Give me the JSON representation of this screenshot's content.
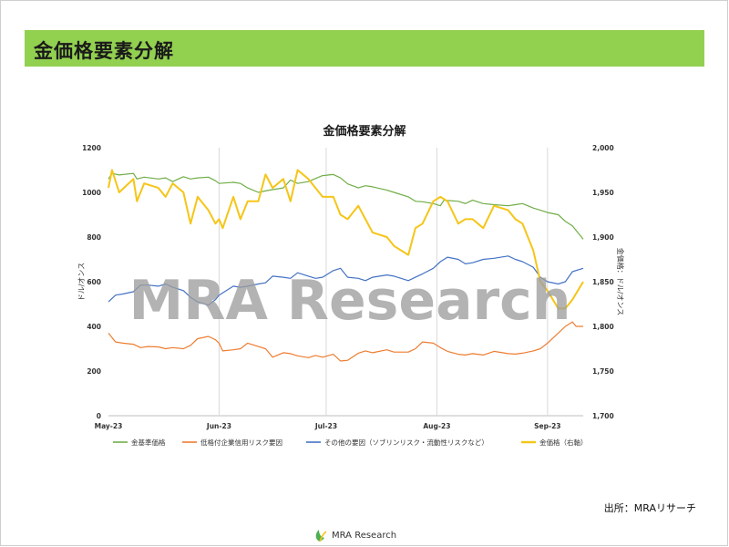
{
  "header": {
    "title": "金価格要素分解"
  },
  "source": "出所：MRAリサーチ",
  "footer": {
    "brand": "MRA Research"
  },
  "watermark": "MRA Research",
  "colors": {
    "header_bg": "#92d050",
    "s1": "#70ad47",
    "s2": "#ed7d31",
    "s3": "#4472c4",
    "s4": "#f5c518"
  },
  "chart_data": {
    "type": "line",
    "title": "金価格要素分解",
    "ylabel": "ドル/オンス",
    "y2label": "金価格：ドル/オンス",
    "ylim": [
      0,
      1200
    ],
    "yticks": [
      0,
      200,
      400,
      600,
      800,
      1000,
      1200
    ],
    "y2lim": [
      1700,
      2000
    ],
    "y2ticks": [
      "1,700",
      "1,750",
      "1,800",
      "1,850",
      "1,900",
      "1,950",
      "2,000"
    ],
    "y2tick_values": [
      1700,
      1750,
      1800,
      1850,
      1900,
      1950,
      2000
    ],
    "xlim": [
      "2023-05-01",
      "2023-09-11"
    ],
    "xticks": [
      {
        "label": "May-23",
        "date": "2023-05-01"
      },
      {
        "label": "Jun-23",
        "date": "2023-06-01"
      },
      {
        "label": "Jul-23",
        "date": "2023-07-01"
      },
      {
        "label": "Aug-23",
        "date": "2023-08-01"
      },
      {
        "label": "Sep-23",
        "date": "2023-09-01"
      }
    ],
    "legend_position": "bottom",
    "grid": false,
    "series": [
      {
        "name": "金基準価格",
        "axis": "left",
        "points": [
          [
            "2023-05-01",
            1060
          ],
          [
            "2023-05-02",
            1085
          ],
          [
            "2023-05-04",
            1078
          ],
          [
            "2023-05-08",
            1085
          ],
          [
            "2023-05-09",
            1060
          ],
          [
            "2023-05-11",
            1068
          ],
          [
            "2023-05-15",
            1060
          ],
          [
            "2023-05-17",
            1065
          ],
          [
            "2023-05-19",
            1048
          ],
          [
            "2023-05-22",
            1070
          ],
          [
            "2023-05-24",
            1060
          ],
          [
            "2023-05-26",
            1065
          ],
          [
            "2023-05-29",
            1068
          ],
          [
            "2023-05-31",
            1052
          ],
          [
            "2023-06-01",
            1040
          ],
          [
            "2023-06-05",
            1045
          ],
          [
            "2023-06-07",
            1040
          ],
          [
            "2023-06-09",
            1020
          ],
          [
            "2023-06-12",
            1000
          ],
          [
            "2023-06-15",
            1010
          ],
          [
            "2023-06-19",
            1020
          ],
          [
            "2023-06-21",
            1055
          ],
          [
            "2023-06-23",
            1040
          ],
          [
            "2023-06-26",
            1048
          ],
          [
            "2023-06-28",
            1062
          ],
          [
            "2023-06-30",
            1075
          ],
          [
            "2023-07-03",
            1080
          ],
          [
            "2023-07-05",
            1065
          ],
          [
            "2023-07-07",
            1038
          ],
          [
            "2023-07-10",
            1020
          ],
          [
            "2023-07-12",
            1030
          ],
          [
            "2023-07-14",
            1025
          ],
          [
            "2023-07-18",
            1010
          ],
          [
            "2023-07-20",
            1000
          ],
          [
            "2023-07-24",
            980
          ],
          [
            "2023-07-26",
            960
          ],
          [
            "2023-07-28",
            958
          ],
          [
            "2023-07-31",
            950
          ],
          [
            "2023-08-02",
            940
          ],
          [
            "2023-08-03",
            965
          ],
          [
            "2023-08-07",
            960
          ],
          [
            "2023-08-09",
            950
          ],
          [
            "2023-08-11",
            965
          ],
          [
            "2023-08-14",
            950
          ],
          [
            "2023-08-17",
            945
          ],
          [
            "2023-08-21",
            940
          ],
          [
            "2023-08-23",
            945
          ],
          [
            "2023-08-25",
            950
          ],
          [
            "2023-08-28",
            930
          ],
          [
            "2023-08-30",
            920
          ],
          [
            "2023-09-01",
            910
          ],
          [
            "2023-09-04",
            900
          ],
          [
            "2023-09-06",
            870
          ],
          [
            "2023-09-08",
            850
          ],
          [
            "2023-09-11",
            790
          ]
        ]
      },
      {
        "name": "低格付企業信用リスク要因",
        "axis": "left",
        "points": [
          [
            "2023-05-01",
            370
          ],
          [
            "2023-05-03",
            330
          ],
          [
            "2023-05-05",
            325
          ],
          [
            "2023-05-08",
            320
          ],
          [
            "2023-05-10",
            305
          ],
          [
            "2023-05-12",
            310
          ],
          [
            "2023-05-15",
            308
          ],
          [
            "2023-05-17",
            300
          ],
          [
            "2023-05-19",
            305
          ],
          [
            "2023-05-22",
            300
          ],
          [
            "2023-05-24",
            315
          ],
          [
            "2023-05-26",
            345
          ],
          [
            "2023-05-29",
            355
          ],
          [
            "2023-05-31",
            340
          ],
          [
            "2023-06-01",
            325
          ],
          [
            "2023-06-02",
            290
          ],
          [
            "2023-06-05",
            295
          ],
          [
            "2023-06-07",
            300
          ],
          [
            "2023-06-09",
            325
          ],
          [
            "2023-06-12",
            310
          ],
          [
            "2023-06-14",
            300
          ],
          [
            "2023-06-16",
            262
          ],
          [
            "2023-06-19",
            282
          ],
          [
            "2023-06-21",
            278
          ],
          [
            "2023-06-23",
            268
          ],
          [
            "2023-06-26",
            260
          ],
          [
            "2023-06-28",
            270
          ],
          [
            "2023-06-30",
            262
          ],
          [
            "2023-07-03",
            275
          ],
          [
            "2023-07-05",
            245
          ],
          [
            "2023-07-07",
            248
          ],
          [
            "2023-07-10",
            280
          ],
          [
            "2023-07-12",
            290
          ],
          [
            "2023-07-14",
            282
          ],
          [
            "2023-07-18",
            295
          ],
          [
            "2023-07-20",
            285
          ],
          [
            "2023-07-24",
            285
          ],
          [
            "2023-07-26",
            300
          ],
          [
            "2023-07-28",
            330
          ],
          [
            "2023-07-31",
            325
          ],
          [
            "2023-08-02",
            305
          ],
          [
            "2023-08-04",
            288
          ],
          [
            "2023-08-07",
            275
          ],
          [
            "2023-08-09",
            272
          ],
          [
            "2023-08-11",
            278
          ],
          [
            "2023-08-14",
            272
          ],
          [
            "2023-08-17",
            288
          ],
          [
            "2023-08-21",
            278
          ],
          [
            "2023-08-23",
            276
          ],
          [
            "2023-08-25",
            280
          ],
          [
            "2023-08-28",
            290
          ],
          [
            "2023-08-30",
            300
          ],
          [
            "2023-09-01",
            325
          ],
          [
            "2023-09-04",
            370
          ],
          [
            "2023-09-06",
            400
          ],
          [
            "2023-09-08",
            420
          ],
          [
            "2023-09-09",
            400
          ],
          [
            "2023-09-11",
            400
          ]
        ]
      },
      {
        "name": "その他の要因（ソブリンリスク・流動性リスクなど）",
        "axis": "left",
        "points": [
          [
            "2023-05-01",
            510
          ],
          [
            "2023-05-03",
            540
          ],
          [
            "2023-05-05",
            545
          ],
          [
            "2023-05-08",
            555
          ],
          [
            "2023-05-10",
            585
          ],
          [
            "2023-05-12",
            585
          ],
          [
            "2023-05-15",
            580
          ],
          [
            "2023-05-17",
            590
          ],
          [
            "2023-05-19",
            575
          ],
          [
            "2023-05-22",
            560
          ],
          [
            "2023-05-24",
            530
          ],
          [
            "2023-05-26",
            510
          ],
          [
            "2023-05-29",
            495
          ],
          [
            "2023-05-31",
            520
          ],
          [
            "2023-06-01",
            540
          ],
          [
            "2023-06-05",
            580
          ],
          [
            "2023-06-07",
            575
          ],
          [
            "2023-06-09",
            580
          ],
          [
            "2023-06-12",
            590
          ],
          [
            "2023-06-14",
            595
          ],
          [
            "2023-06-16",
            625
          ],
          [
            "2023-06-19",
            620
          ],
          [
            "2023-06-21",
            615
          ],
          [
            "2023-06-23",
            640
          ],
          [
            "2023-06-26",
            625
          ],
          [
            "2023-06-28",
            615
          ],
          [
            "2023-06-30",
            620
          ],
          [
            "2023-07-03",
            650
          ],
          [
            "2023-07-05",
            660
          ],
          [
            "2023-07-07",
            620
          ],
          [
            "2023-07-10",
            615
          ],
          [
            "2023-07-12",
            605
          ],
          [
            "2023-07-14",
            620
          ],
          [
            "2023-07-18",
            630
          ],
          [
            "2023-07-20",
            625
          ],
          [
            "2023-07-24",
            605
          ],
          [
            "2023-07-26",
            620
          ],
          [
            "2023-07-28",
            635
          ],
          [
            "2023-07-31",
            660
          ],
          [
            "2023-08-02",
            690
          ],
          [
            "2023-08-04",
            710
          ],
          [
            "2023-08-07",
            700
          ],
          [
            "2023-08-09",
            680
          ],
          [
            "2023-08-11",
            685
          ],
          [
            "2023-08-14",
            700
          ],
          [
            "2023-08-17",
            705
          ],
          [
            "2023-08-21",
            715
          ],
          [
            "2023-08-23",
            700
          ],
          [
            "2023-08-25",
            690
          ],
          [
            "2023-08-28",
            665
          ],
          [
            "2023-08-30",
            620
          ],
          [
            "2023-09-01",
            600
          ],
          [
            "2023-09-04",
            590
          ],
          [
            "2023-09-06",
            600
          ],
          [
            "2023-09-08",
            645
          ],
          [
            "2023-09-11",
            660
          ]
        ]
      },
      {
        "name": "金価格（右軸）",
        "axis": "right",
        "points": [
          [
            "2023-05-01",
            1955
          ],
          [
            "2023-05-02",
            1975
          ],
          [
            "2023-05-04",
            1950
          ],
          [
            "2023-05-08",
            1965
          ],
          [
            "2023-05-09",
            1940
          ],
          [
            "2023-05-11",
            1960
          ],
          [
            "2023-05-15",
            1955
          ],
          [
            "2023-05-17",
            1945
          ],
          [
            "2023-05-19",
            1960
          ],
          [
            "2023-05-22",
            1950
          ],
          [
            "2023-05-24",
            1915
          ],
          [
            "2023-05-26",
            1945
          ],
          [
            "2023-05-29",
            1930
          ],
          [
            "2023-05-31",
            1915
          ],
          [
            "2023-06-01",
            1920
          ],
          [
            "2023-06-02",
            1910
          ],
          [
            "2023-06-05",
            1945
          ],
          [
            "2023-06-07",
            1920
          ],
          [
            "2023-06-09",
            1940
          ],
          [
            "2023-06-12",
            1940
          ],
          [
            "2023-06-14",
            1970
          ],
          [
            "2023-06-16",
            1955
          ],
          [
            "2023-06-19",
            1965
          ],
          [
            "2023-06-21",
            1940
          ],
          [
            "2023-06-23",
            1975
          ],
          [
            "2023-06-26",
            1965
          ],
          [
            "2023-06-28",
            1955
          ],
          [
            "2023-06-30",
            1945
          ],
          [
            "2023-07-03",
            1945
          ],
          [
            "2023-07-05",
            1925
          ],
          [
            "2023-07-07",
            1920
          ],
          [
            "2023-07-10",
            1935
          ],
          [
            "2023-07-12",
            1920
          ],
          [
            "2023-07-14",
            1905
          ],
          [
            "2023-07-18",
            1900
          ],
          [
            "2023-07-20",
            1890
          ],
          [
            "2023-07-24",
            1880
          ],
          [
            "2023-07-26",
            1910
          ],
          [
            "2023-07-28",
            1915
          ],
          [
            "2023-07-31",
            1940
          ],
          [
            "2023-08-02",
            1945
          ],
          [
            "2023-08-04",
            1940
          ],
          [
            "2023-08-07",
            1915
          ],
          [
            "2023-08-09",
            1920
          ],
          [
            "2023-08-11",
            1920
          ],
          [
            "2023-08-14",
            1910
          ],
          [
            "2023-08-17",
            1935
          ],
          [
            "2023-08-21",
            1930
          ],
          [
            "2023-08-23",
            1920
          ],
          [
            "2023-08-25",
            1915
          ],
          [
            "2023-08-28",
            1885
          ],
          [
            "2023-08-30",
            1850
          ],
          [
            "2023-09-01",
            1840
          ],
          [
            "2023-09-04",
            1820
          ],
          [
            "2023-09-06",
            1820
          ],
          [
            "2023-09-08",
            1830
          ],
          [
            "2023-09-11",
            1850
          ]
        ]
      }
    ]
  }
}
